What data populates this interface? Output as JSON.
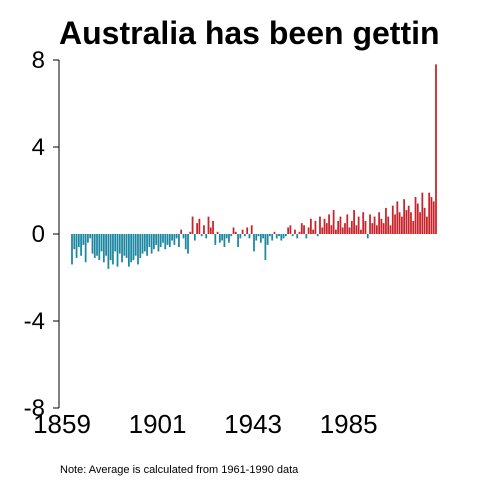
{
  "chart_data": {
    "type": "bar",
    "title": "Australia has been gettin",
    "note": "Note: Average is calculated from 1961-1990 data",
    "xlabel": "",
    "ylabel": "",
    "x_start": 1859,
    "x_end": 2019,
    "ylim": [
      -8,
      8
    ],
    "yticks": [
      "8",
      "4",
      "0",
      "-4",
      "-8"
    ],
    "ytick_values": [
      8,
      4,
      0,
      -4,
      -8
    ],
    "xticks": [
      "1859",
      "1901",
      "1943",
      "1985"
    ],
    "xtick_values": [
      1859,
      1901,
      1943,
      1985
    ],
    "grid": false,
    "legend": "none",
    "colors": {
      "positive": "#c8232a",
      "negative": "#1d86a0"
    },
    "values": [
      -1.4,
      -0.7,
      -1.1,
      -0.6,
      -1.0,
      -0.5,
      -1.3,
      -0.4,
      -0.2,
      -0.9,
      -1.1,
      -1.0,
      -1.2,
      -0.8,
      -1.3,
      -1.0,
      -1.6,
      -1.2,
      -1.4,
      -0.8,
      -1.5,
      -0.9,
      -1.3,
      -1.0,
      -1.1,
      -1.5,
      -1.3,
      -1.2,
      -1.0,
      -1.4,
      -1.1,
      -0.9,
      -0.8,
      -1.0,
      -0.6,
      -0.9,
      -0.7,
      -0.5,
      -0.8,
      -0.6,
      -0.4,
      -0.7,
      -0.5,
      -0.6,
      -0.3,
      -0.5,
      -0.2,
      -0.6,
      0.2,
      -0.2,
      -0.7,
      -0.9,
      0.1,
      0.8,
      -0.3,
      0.5,
      0.7,
      -0.1,
      0.4,
      -0.2,
      0.8,
      0.3,
      0.6,
      -0.5,
      0.1,
      -0.4,
      -0.3,
      -0.6,
      -0.2,
      -0.4,
      -0.1,
      0.3,
      0.1,
      -0.6,
      -0.2,
      0.2,
      -0.1,
      0.3,
      -0.2,
      0.4,
      -0.8,
      -0.3,
      -0.1,
      -0.4,
      -0.2,
      -1.2,
      -0.5,
      -0.1,
      -0.3,
      0.1,
      -0.2,
      -0.1,
      -0.3,
      -0.2,
      -0.1,
      0.3,
      0.4,
      -0.1,
      0.2,
      -0.2,
      0.1,
      0.5,
      0.4,
      -0.2,
      0.3,
      0.7,
      0.2,
      0.6,
      -0.1,
      0.8,
      0.3,
      0.7,
      0.5,
      0.9,
      0.4,
      1.1,
      0.2,
      0.6,
      0.8,
      0.3,
      0.5,
      0.9,
      0.3,
      0.6,
      1.1,
      0.4,
      0.8,
      0.2,
      1.0,
      0.6,
      -0.2,
      0.9,
      0.5,
      0.8,
      0.4,
      1.0,
      0.7,
      0.5,
      1.2,
      0.8,
      0.4,
      1.3,
      0.9,
      1.5,
      1.0,
      0.8,
      1.6,
      1.1,
      1.3,
      1.0,
      0.6,
      1.7,
      1.4,
      1.0,
      1.9,
      1.2,
      0.8,
      1.9,
      1.7,
      1.5,
      7.8
    ]
  }
}
